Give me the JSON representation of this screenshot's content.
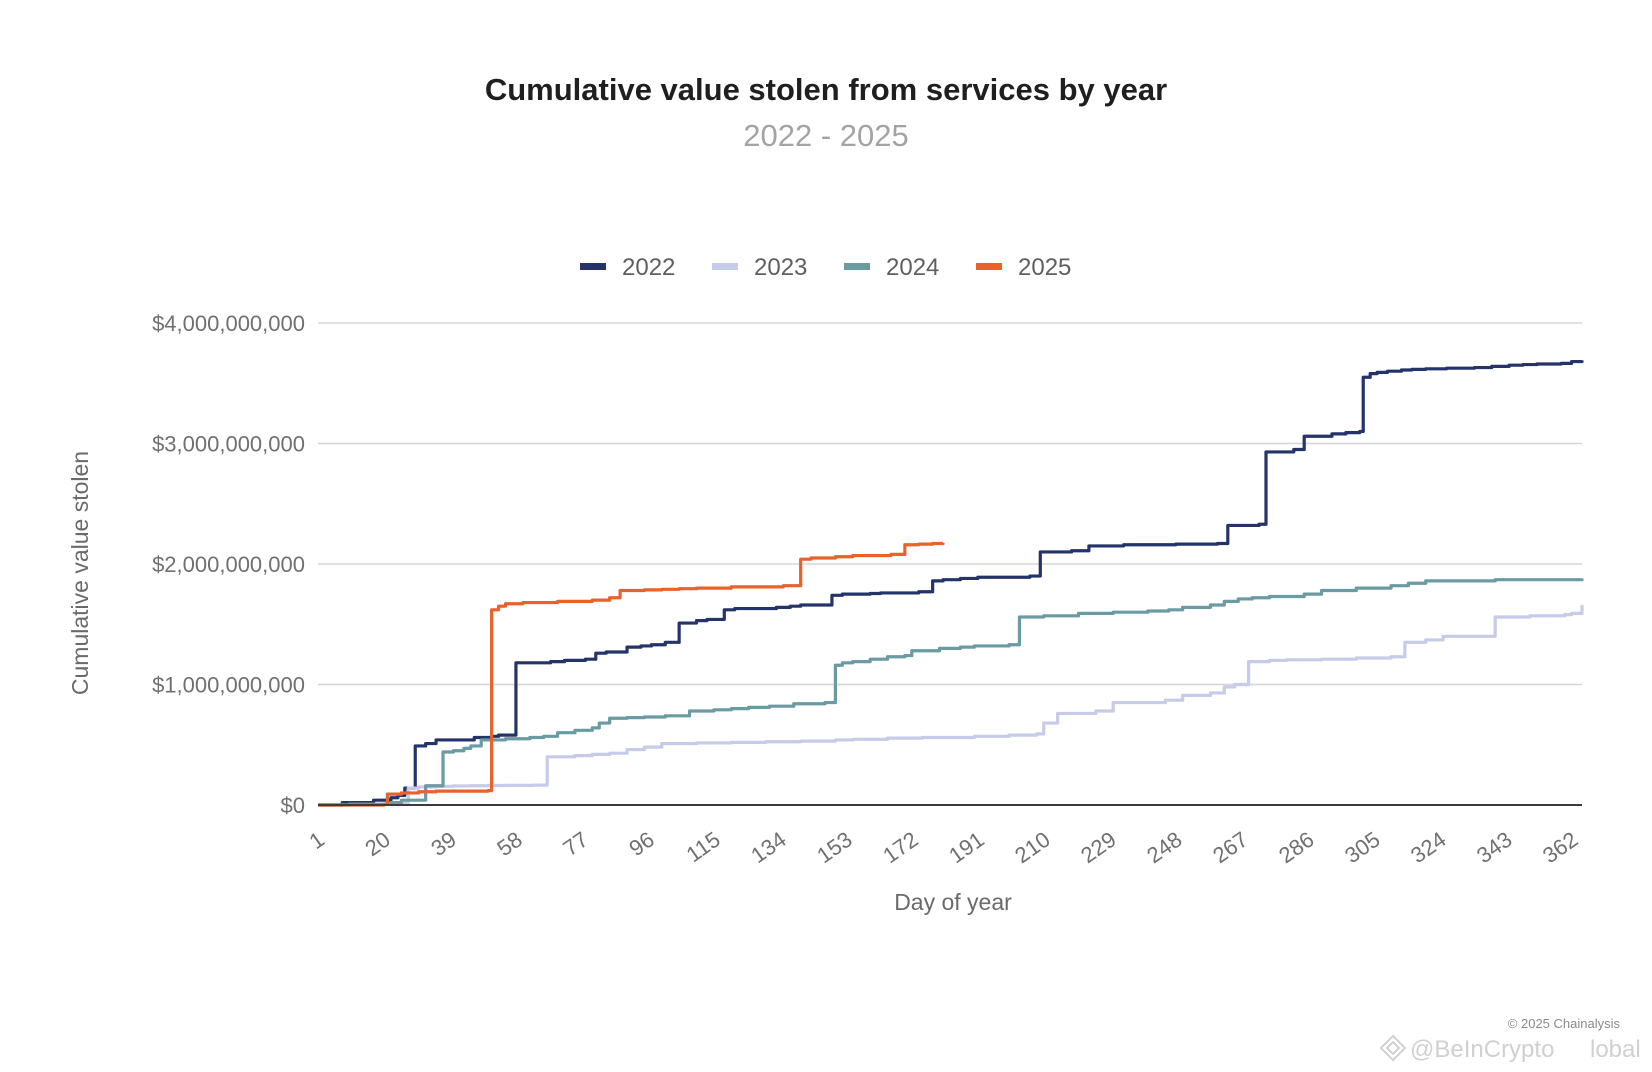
{
  "chart_data": {
    "type": "line",
    "title": "Cumulative value stolen from services by year",
    "subtitle": "2022 - 2025",
    "xlabel": "Day of year",
    "ylabel": "Cumulative value stolen",
    "xlim": [
      1,
      365
    ],
    "ylim": [
      0,
      4000000000
    ],
    "x_ticks": [
      1,
      20,
      39,
      58,
      77,
      96,
      115,
      134,
      153,
      172,
      191,
      210,
      229,
      248,
      267,
      286,
      305,
      324,
      343,
      362
    ],
    "y_ticks": [
      0,
      1000000000,
      2000000000,
      3000000000,
      4000000000
    ],
    "y_tick_labels": [
      "$0",
      "$1,000,000,000",
      "$2,000,000,000",
      "$3,000,000,000",
      "$4,000,000,000"
    ],
    "grid": true,
    "legend_position": "top-center",
    "series": [
      {
        "name": "2022",
        "color": "#25336b",
        "x": [
          1,
          8,
          17,
          22,
          24,
          26,
          29,
          32,
          35,
          46,
          51,
          53,
          58,
          68,
          72,
          78,
          81,
          84,
          90,
          94,
          97,
          101,
          105,
          110,
          113,
          118,
          121,
          133,
          137,
          140,
          149,
          152,
          160,
          163,
          174,
          178,
          181,
          186,
          191,
          206,
          209,
          218,
          223,
          233,
          248,
          260,
          263,
          272,
          274,
          282,
          285,
          293,
          297,
          301,
          302,
          304,
          306,
          309,
          313,
          316,
          320,
          326,
          334,
          339,
          344,
          348,
          352,
          359,
          362,
          365
        ],
        "values": [
          0,
          20000000,
          40000000,
          60000000,
          80000000,
          140000000,
          490000000,
          510000000,
          540000000,
          560000000,
          570000000,
          580000000,
          1180000000,
          1190000000,
          1200000000,
          1210000000,
          1260000000,
          1270000000,
          1310000000,
          1320000000,
          1330000000,
          1350000000,
          1510000000,
          1530000000,
          1540000000,
          1620000000,
          1630000000,
          1640000000,
          1650000000,
          1660000000,
          1740000000,
          1750000000,
          1755000000,
          1760000000,
          1770000000,
          1860000000,
          1870000000,
          1880000000,
          1890000000,
          1900000000,
          2100000000,
          2110000000,
          2150000000,
          2160000000,
          2165000000,
          2170000000,
          2320000000,
          2330000000,
          2930000000,
          2950000000,
          3060000000,
          3080000000,
          3090000000,
          3100000000,
          3550000000,
          3580000000,
          3590000000,
          3600000000,
          3610000000,
          3615000000,
          3620000000,
          3625000000,
          3630000000,
          3640000000,
          3650000000,
          3655000000,
          3660000000,
          3665000000,
          3680000000,
          3690000000
        ]
      },
      {
        "name": "2023",
        "color": "#c5cbe8",
        "x": [
          1,
          10,
          20,
          25,
          27,
          30,
          35,
          40,
          45,
          50,
          55,
          63,
          67,
          75,
          80,
          85,
          90,
          95,
          100,
          110,
          120,
          130,
          140,
          150,
          155,
          165,
          175,
          190,
          200,
          208,
          210,
          214,
          225,
          230,
          245,
          250,
          258,
          262,
          265,
          269,
          275,
          280,
          290,
          300,
          310,
          314,
          320,
          325,
          340,
          350,
          360,
          362,
          365
        ],
        "values": [
          0,
          5000000,
          10000000,
          15000000,
          140000000,
          150000000,
          155000000,
          158000000,
          160000000,
          162000000,
          163000000,
          165000000,
          400000000,
          410000000,
          420000000,
          430000000,
          460000000,
          480000000,
          510000000,
          515000000,
          520000000,
          525000000,
          530000000,
          540000000,
          545000000,
          555000000,
          560000000,
          570000000,
          580000000,
          590000000,
          680000000,
          760000000,
          780000000,
          850000000,
          870000000,
          910000000,
          930000000,
          980000000,
          1000000000,
          1190000000,
          1200000000,
          1205000000,
          1210000000,
          1220000000,
          1230000000,
          1350000000,
          1370000000,
          1400000000,
          1560000000,
          1570000000,
          1580000000,
          1590000000,
          1660000000
        ]
      },
      {
        "name": "2024",
        "color": "#6b9ba2",
        "x": [
          1,
          10,
          22,
          25,
          32,
          37,
          40,
          43,
          45,
          48,
          55,
          62,
          66,
          70,
          75,
          80,
          82,
          85,
          90,
          95,
          101,
          108,
          115,
          120,
          125,
          131,
          138,
          147,
          150,
          152,
          155,
          160,
          165,
          170,
          172,
          180,
          186,
          190,
          200,
          203,
          210,
          220,
          230,
          240,
          246,
          250,
          258,
          262,
          266,
          270,
          275,
          285,
          290,
          300,
          310,
          315,
          320,
          340,
          365
        ],
        "values": [
          0,
          5000000,
          20000000,
          40000000,
          160000000,
          440000000,
          450000000,
          470000000,
          490000000,
          540000000,
          550000000,
          560000000,
          570000000,
          600000000,
          620000000,
          640000000,
          680000000,
          720000000,
          725000000,
          730000000,
          740000000,
          780000000,
          790000000,
          800000000,
          810000000,
          820000000,
          840000000,
          850000000,
          1160000000,
          1180000000,
          1190000000,
          1210000000,
          1230000000,
          1240000000,
          1280000000,
          1300000000,
          1310000000,
          1320000000,
          1330000000,
          1560000000,
          1570000000,
          1590000000,
          1600000000,
          1610000000,
          1620000000,
          1640000000,
          1660000000,
          1690000000,
          1710000000,
          1720000000,
          1730000000,
          1750000000,
          1780000000,
          1800000000,
          1820000000,
          1840000000,
          1860000000,
          1870000000,
          1880000000
        ]
      },
      {
        "name": "2025",
        "color": "#e8622a",
        "x": [
          1,
          20,
          21,
          25,
          30,
          35,
          50,
          51,
          53,
          55,
          60,
          70,
          80,
          85,
          88,
          95,
          100,
          105,
          110,
          120,
          135,
          140,
          143,
          150,
          155,
          166,
          170,
          174,
          178,
          181
        ],
        "values": [
          0,
          5000000,
          90000000,
          100000000,
          110000000,
          115000000,
          120000000,
          1620000000,
          1650000000,
          1670000000,
          1680000000,
          1690000000,
          1700000000,
          1720000000,
          1780000000,
          1785000000,
          1790000000,
          1795000000,
          1800000000,
          1810000000,
          1820000000,
          2040000000,
          2050000000,
          2060000000,
          2070000000,
          2080000000,
          2160000000,
          2165000000,
          2170000000,
          2175000000
        ]
      }
    ]
  },
  "footer": {
    "credit": "© 2025 Chainalysis",
    "watermark": "@BeInCrypto",
    "watermark_tail": "lobal"
  }
}
